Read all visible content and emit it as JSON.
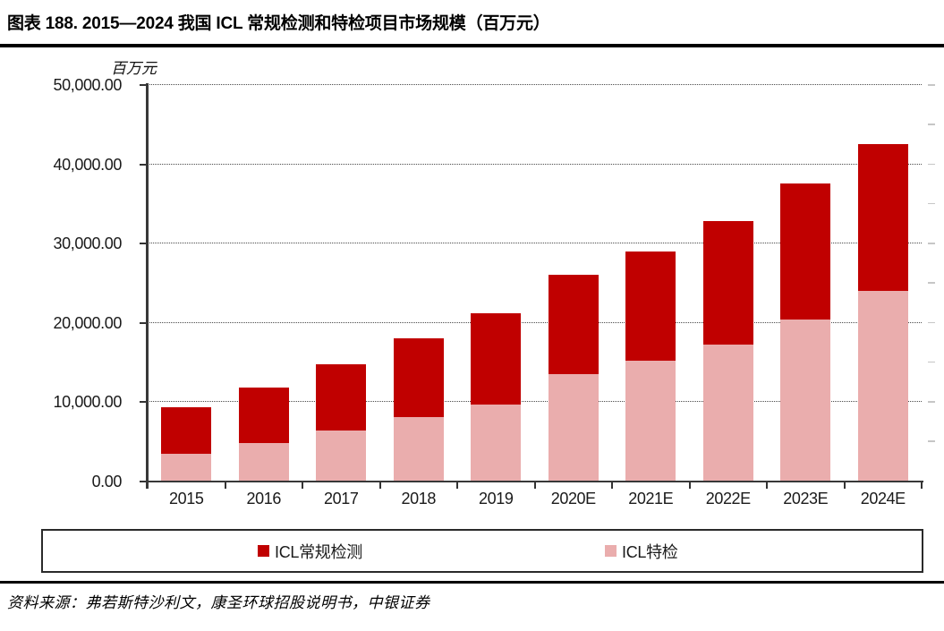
{
  "title": "图表 188. 2015—2024 我国 ICL 常规检测和特检项目市场规模（百万元）",
  "source_note": "资料来源：弗若斯特沙利文，康圣环球招股说明书，中银证券",
  "chart_data": {
    "type": "bar",
    "stacked": true,
    "title": "2015—2024 我国 ICL 常规检测和特检项目市场规模",
    "unit_label": "百万元",
    "xlabel": "",
    "ylabel": "百万元",
    "categories": [
      "2015",
      "2016",
      "2017",
      "2018",
      "2019",
      "2020E",
      "2021E",
      "2022E",
      "2023E",
      "2024E"
    ],
    "series": [
      {
        "key": "icl-regular-testing",
        "name": "ICL常规检测",
        "color": "#C00000",
        "stack_position": "top",
        "values": [
          5900,
          7000,
          8400,
          9900,
          11500,
          12600,
          13800,
          15600,
          17200,
          18500
        ]
      },
      {
        "key": "icl-special-testing",
        "name": "ICL特检",
        "color": "#EAADAD",
        "stack_position": "bottom",
        "values": [
          3400,
          4800,
          6400,
          8100,
          9700,
          13500,
          15200,
          17200,
          20400,
          24000
        ]
      }
    ],
    "stacked_totals": [
      9300,
      11800,
      14800,
      18000,
      21200,
      26100,
      29000,
      32800,
      37600,
      42500
    ],
    "ylim": [
      0,
      50000
    ],
    "y_ticks": [
      0,
      10000,
      20000,
      30000,
      40000,
      50000
    ],
    "y_tick_labels": [
      "0.00",
      "10,000.00",
      "20,000.00",
      "30,000.00",
      "40,000.00",
      "50,000.00"
    ],
    "grid": "horizontal-dotted",
    "legend_position": "bottom-box"
  }
}
